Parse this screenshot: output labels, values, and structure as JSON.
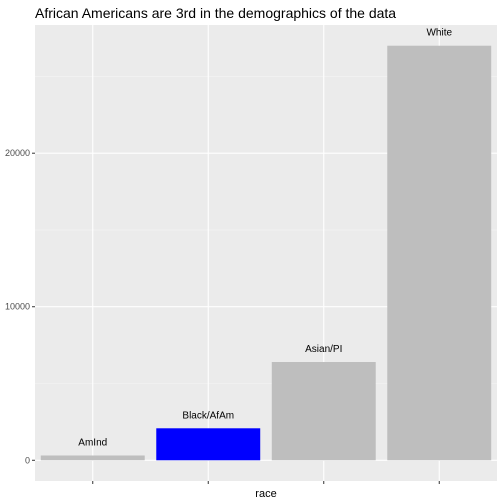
{
  "chart_data": {
    "type": "bar",
    "title": "African Americans are 3rd in the demographics of the data",
    "xlabel": "race",
    "ylabel": "",
    "categories": [
      "AmInd",
      "Black/AfAm",
      "Asian/PI",
      "White"
    ],
    "values": [
      311,
      2083,
      6400,
      27000
    ],
    "bar_labels": [
      "AmInd",
      "Black/AfAm",
      "Asian/PI",
      "White"
    ],
    "bar_colors": [
      "#bebebe",
      "#0000ff",
      "#bebebe",
      "#bebebe"
    ],
    "ylim": [
      -1350,
      28350
    ],
    "yticks": [
      0,
      10000,
      20000
    ],
    "ytick_labels": [
      "0",
      "10000",
      "20000"
    ],
    "grid": true,
    "colors": {
      "panel_background": "#ebebeb",
      "grid_major": "#ffffff",
      "grid_minor": "#f5f5f5",
      "highlight": "#0000ff",
      "default_bar": "#bebebe"
    }
  }
}
